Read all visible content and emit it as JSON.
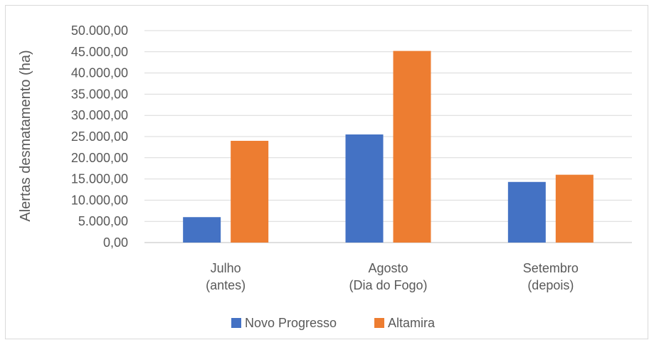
{
  "chart_data": {
    "type": "bar",
    "title": "",
    "xlabel": "",
    "ylabel": "Alertas desmatamento (ha)",
    "categories": [
      [
        "Julho",
        "(antes)"
      ],
      [
        "Agosto",
        "(Dia do Fogo)"
      ],
      [
        "Setembro",
        "(depois)"
      ]
    ],
    "series": [
      {
        "name": "Novo Progresso",
        "color": "#4472c4",
        "values": [
          6000,
          25500,
          14300
        ]
      },
      {
        "name": "Altamira",
        "color": "#ed7d31",
        "values": [
          24000,
          45200,
          16000
        ]
      }
    ],
    "ylim": [
      0,
      50000
    ],
    "yticks": [
      "0,00",
      "5.000,00",
      "10.000,00",
      "15.000,00",
      "20.000,00",
      "25.000,00",
      "30.000,00",
      "35.000,00",
      "40.000,00",
      "45.000,00",
      "50.000,00"
    ],
    "ytick_values": [
      0,
      5000,
      10000,
      15000,
      20000,
      25000,
      30000,
      35000,
      40000,
      45000,
      50000
    ],
    "grid": true,
    "legend_position": "bottom"
  }
}
